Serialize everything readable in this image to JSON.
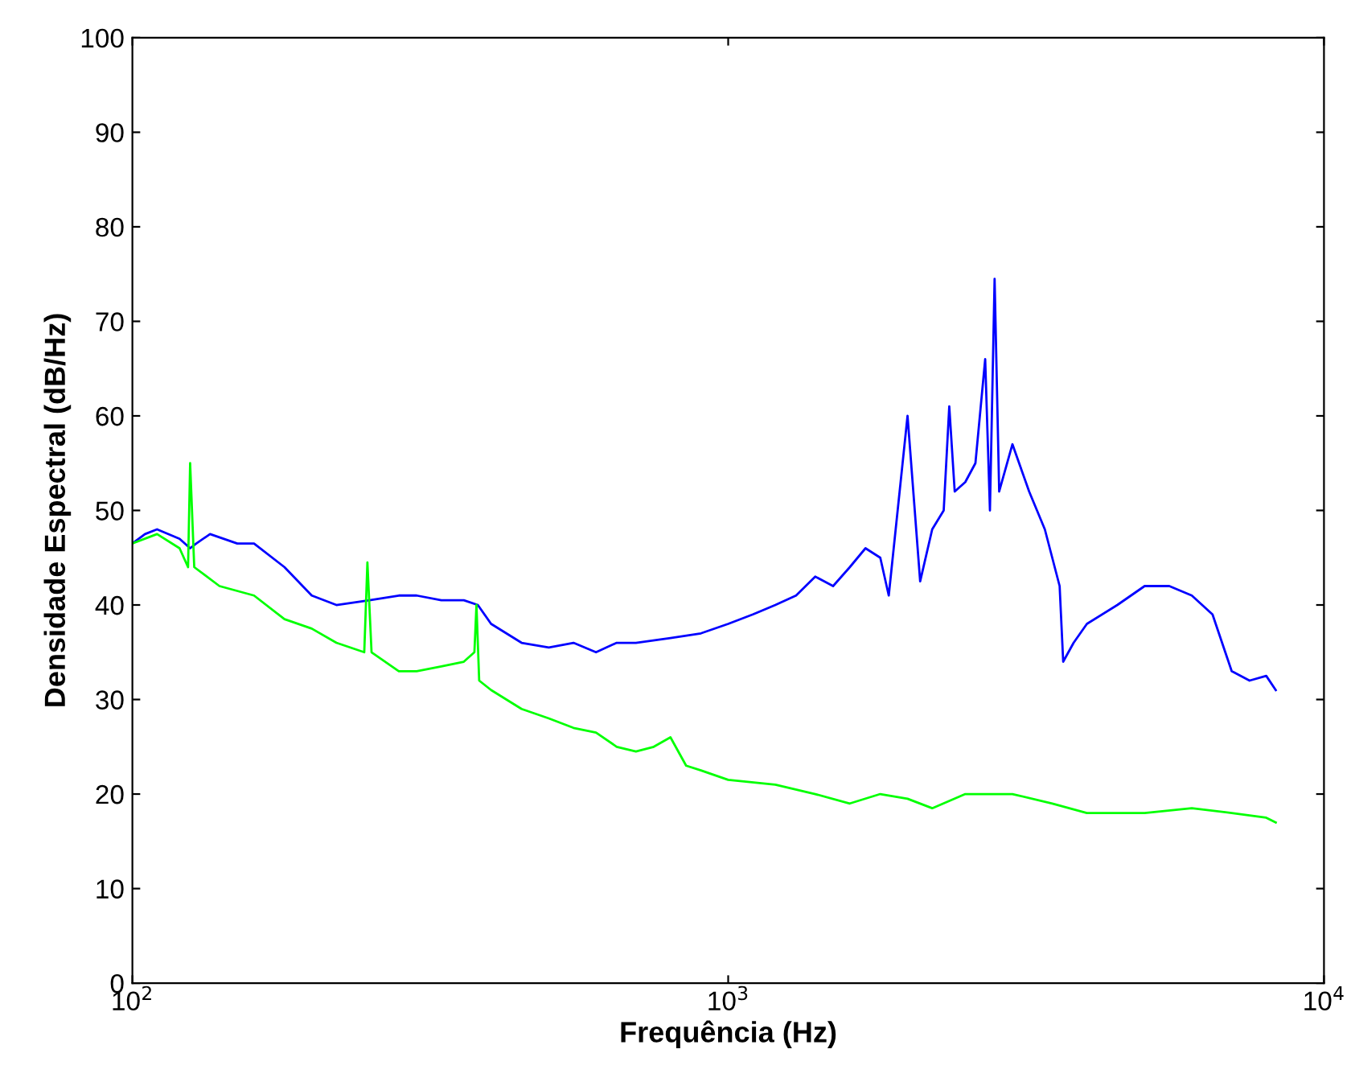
{
  "chart_data": {
    "type": "line",
    "xlabel": "Frequência (Hz)",
    "ylabel": "Densidade Espectral (dB/Hz)",
    "log": "x",
    "xlim": [
      100,
      10000
    ],
    "ylim": [
      0,
      100
    ],
    "xticks": [
      {
        "value": 100,
        "label": "10$^{2}$"
      },
      {
        "value": 1000,
        "label": "10$^{3}$"
      },
      {
        "value": 10000,
        "label": "10$^{4}$"
      }
    ],
    "yticks": [
      0,
      10,
      20,
      30,
      40,
      50,
      60,
      70,
      80,
      90,
      100
    ],
    "grid": false,
    "legend": false,
    "marker": "none",
    "line_style": "solid",
    "series": [
      {
        "color": "#0000ff",
        "x": [
          100,
          105,
          110,
          120,
          125,
          128,
          135,
          150,
          160,
          180,
          200,
          220,
          250,
          280,
          300,
          330,
          360,
          380,
          400,
          450,
          500,
          550,
          600,
          650,
          700,
          800,
          900,
          1000,
          1100,
          1200,
          1300,
          1400,
          1500,
          1600,
          1700,
          1800,
          1860,
          2000,
          2100,
          2200,
          2300,
          2350,
          2400,
          2500,
          2600,
          2700,
          2750,
          2800,
          2850,
          3000,
          3200,
          3400,
          3600,
          3650,
          3800,
          4000,
          4500,
          5000,
          5500,
          6000,
          6500,
          7000,
          7500,
          8000,
          8300
        ],
        "values": [
          46.5,
          47.5,
          48,
          47,
          46,
          46.5,
          47.5,
          46.5,
          46.5,
          44,
          41,
          40,
          40.5,
          41,
          41,
          40.5,
          40.5,
          40,
          38,
          36,
          35.5,
          36,
          35,
          36,
          36,
          36.5,
          37,
          38,
          39,
          40,
          41,
          43,
          42,
          44,
          46,
          45,
          41,
          60,
          42.5,
          48,
          50,
          61,
          52,
          53,
          55,
          66,
          50,
          74.5,
          52,
          57,
          52,
          48,
          42,
          34,
          36,
          38,
          40,
          42,
          42,
          41,
          39,
          33,
          32,
          32.5,
          31
        ]
      },
      {
        "color": "#00ff00",
        "x": [
          100,
          110,
          120,
          124,
          125,
          127,
          140,
          160,
          180,
          200,
          220,
          245,
          248,
          252,
          280,
          300,
          330,
          360,
          375,
          378,
          382,
          400,
          450,
          500,
          550,
          600,
          650,
          700,
          750,
          800,
          850,
          900,
          1000,
          1200,
          1400,
          1600,
          1800,
          2000,
          2200,
          2500,
          2800,
          3000,
          3500,
          4000,
          5000,
          6000,
          7000,
          8000,
          8300
        ],
        "values": [
          46.5,
          47.5,
          46,
          44,
          55,
          44,
          42,
          41,
          38.5,
          37.5,
          36,
          35,
          44.5,
          35,
          33,
          33,
          33.5,
          34,
          35,
          40,
          32,
          31,
          29,
          28,
          27,
          26.5,
          25,
          24.5,
          25,
          26,
          23,
          22.5,
          21.5,
          21,
          20,
          19,
          20,
          19.5,
          18.5,
          20,
          20,
          20,
          19,
          18,
          18,
          18.5,
          18,
          17.5,
          17
        ]
      }
    ]
  }
}
